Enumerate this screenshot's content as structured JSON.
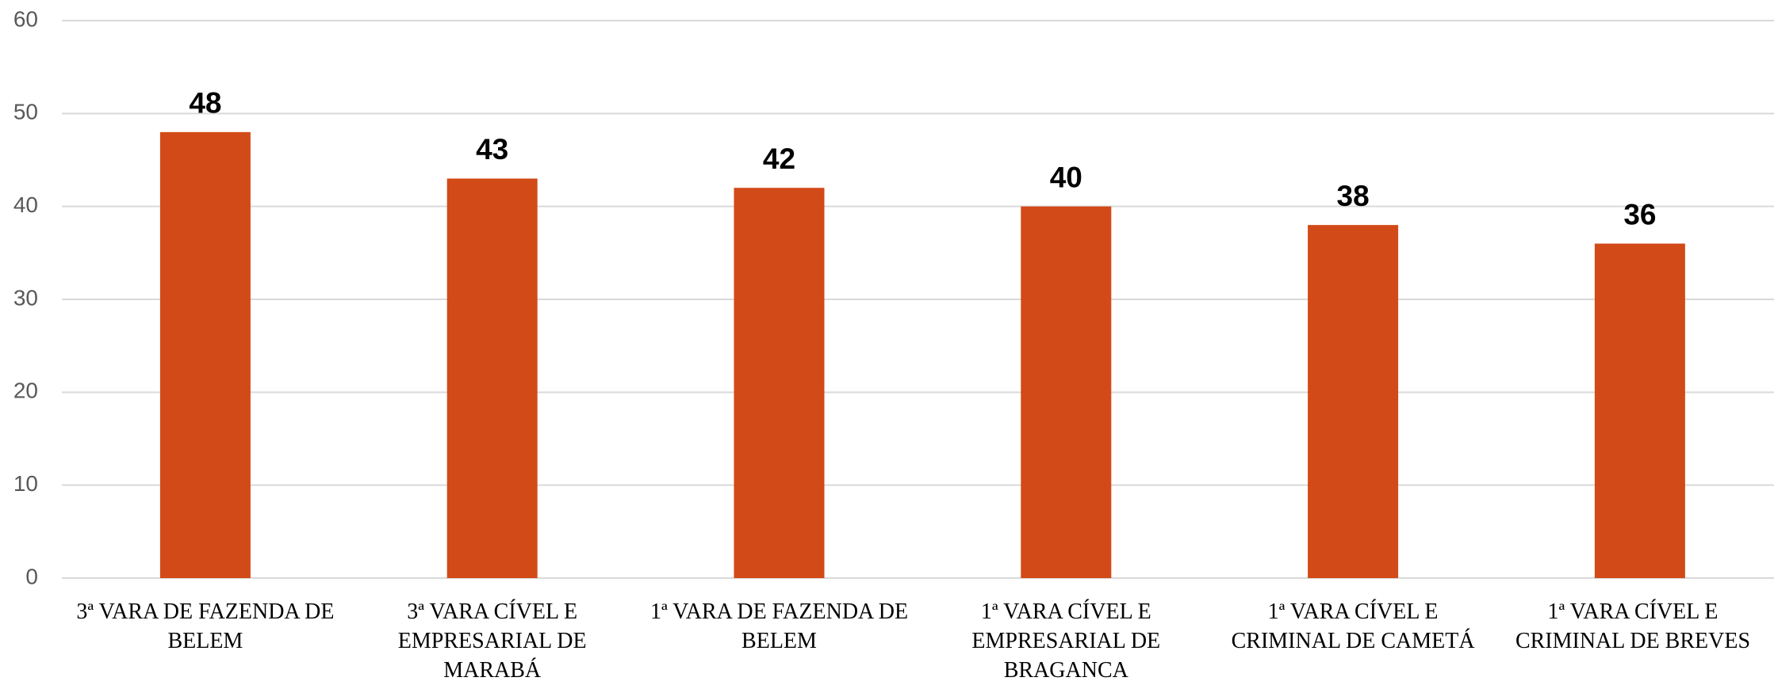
{
  "chart_data": {
    "type": "bar",
    "categories": [
      "3ª VARA DE FAZENDA DE BELEM",
      "3ª VARA CÍVEL E EMPRESARIAL DE MARABÁ",
      "1ª VARA DE FAZENDA DE BELEM",
      "1ª VARA CÍVEL E EMPRESARIAL DE BRAGANCA",
      "1ª VARA CÍVEL E CRIMINAL DE CAMETÁ",
      "1ª VARA CÍVEL E CRIMINAL DE BREVES"
    ],
    "values": [
      48,
      43,
      42,
      40,
      38,
      36
    ],
    "color": "#d24a17",
    "ylim": [
      0,
      60
    ],
    "yticks": [
      0,
      10,
      20,
      30,
      40,
      50,
      60
    ],
    "grid": true
  }
}
